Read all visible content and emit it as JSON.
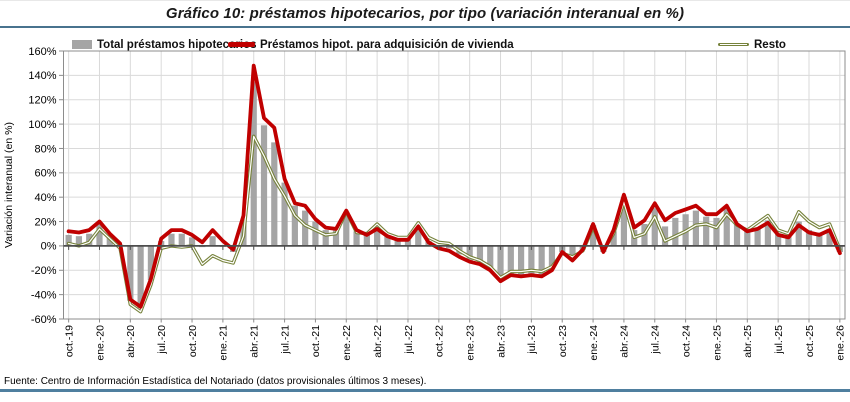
{
  "page": {
    "title": "Gráfico 10: préstamos hipotecarios, por tipo (variación interanual en %)",
    "footer": "Fuente: Centro de Información Estadística del Notariado (datos provisionales últimos 3 meses).",
    "accent_rule_color": "#48738E"
  },
  "chart_data": {
    "type": "combo",
    "title": "Gráfico 10: préstamos hipotecarios, por tipo (variación interanual en %)",
    "ylabel": "Variación interanual (en %)",
    "ylim": [
      -60,
      160
    ],
    "ytick_step": 20,
    "ytick_labels": [
      "160%",
      "140%",
      "120%",
      "100%",
      "80%",
      "60%",
      "40%",
      "20%",
      "0%",
      "-20%",
      "-40%",
      "-60%"
    ],
    "grid": true,
    "legend_position": "top",
    "xtick_every": 3,
    "categories": [
      "oct.-19",
      "nov.-19",
      "dic.-19",
      "ene.-20",
      "feb.-20",
      "mar.-20",
      "abr.-20",
      "may.-20",
      "jun.-20",
      "jul.-20",
      "ago.-20",
      "sep.-20",
      "oct.-20",
      "nov.-20",
      "dic.-20",
      "ene.-21",
      "feb.-21",
      "mar.-21",
      "abr.-21",
      "may.-21",
      "jun.-21",
      "jul.-21",
      "ago.-21",
      "sep.-21",
      "oct.-21",
      "nov.-21",
      "dic.-21",
      "ene.-22",
      "feb.-22",
      "mar.-22",
      "abr.-22",
      "may.-22",
      "jun.-22",
      "jul.-22",
      "ago.-22",
      "sep.-22",
      "oct.-22",
      "nov.-22",
      "dic.-22",
      "ene.-23",
      "feb.-23",
      "mar.-23",
      "abr.-23",
      "may.-23",
      "jun.-23",
      "jul.-23",
      "ago.-23",
      "sep.-23",
      "oct.-23",
      "nov.-23",
      "dic.-23",
      "ene.-24",
      "feb.-24",
      "mar.-24",
      "abr.-24",
      "may.-24",
      "jun.-24",
      "jul.-24",
      "ago.-24",
      "sep.-24",
      "oct.-24",
      "nov.-24",
      "dic.-24",
      "ene.-25",
      "feb.-25",
      "mar.-25",
      "abr.-25",
      "may.-25",
      "jun.-25",
      "jul.-25",
      "ago.-25",
      "sep.-25",
      "oct.-25",
      "nov.-25",
      "dic.-25",
      "ene.-26"
    ],
    "series": [
      {
        "name": "Total préstamos hipotecarios",
        "type": "bar",
        "color": "#A5A5A5",
        "values": [
          9,
          8,
          10,
          18,
          9,
          1,
          -45,
          -51,
          -28,
          4,
          10,
          10,
          7,
          -1,
          8,
          0,
          -5,
          21,
          135,
          99,
          85,
          52,
          33,
          29,
          20,
          13,
          13,
          28,
          12,
          9,
          15,
          9,
          6,
          5,
          17,
          4,
          -1,
          -2,
          -7,
          -12,
          -14,
          -19,
          -28,
          -23,
          -24,
          -23,
          -24,
          -19,
          -5,
          -11,
          -3,
          17,
          -5,
          12,
          40,
          13,
          18,
          31,
          16,
          23,
          26,
          29,
          24,
          23,
          31,
          18,
          12,
          15,
          21,
          10,
          8,
          20,
          13,
          11,
          14,
          -5
        ]
      },
      {
        "name": "Préstamos hipot. para adquisición de vivienda",
        "type": "line",
        "color": "#C00000",
        "values": [
          12,
          11,
          13,
          20,
          10,
          2,
          -44,
          -50,
          -27,
          6,
          13,
          13,
          9,
          3,
          13,
          4,
          -3,
          25,
          148,
          105,
          97,
          55,
          35,
          33,
          22,
          15,
          14,
          29,
          13,
          9,
          14,
          8,
          5,
          5,
          16,
          3,
          -2,
          -4,
          -9,
          -13,
          -15,
          -20,
          -29,
          -24,
          -25,
          -24,
          -25,
          -20,
          -5,
          -12,
          -3,
          18,
          -5,
          13,
          42,
          15,
          21,
          35,
          21,
          27,
          30,
          33,
          26,
          26,
          33,
          18,
          12,
          14,
          19,
          9,
          7,
          17,
          11,
          9,
          13,
          -6
        ]
      },
      {
        "name": "Resto",
        "type": "line",
        "color": "#76823B",
        "core_color": "#FFFFFF",
        "values": [
          2,
          0,
          3,
          14,
          6,
          -2,
          -48,
          -54,
          -32,
          -2,
          0,
          -1,
          0,
          -15,
          -8,
          -12,
          -14,
          8,
          90,
          74,
          55,
          41,
          25,
          17,
          13,
          9,
          10,
          28,
          11,
          10,
          18,
          10,
          7,
          7,
          19,
          7,
          3,
          2,
          -4,
          -9,
          -12,
          -17,
          -26,
          -21,
          -21,
          -20,
          -21,
          -17,
          -6,
          -9,
          -4,
          15,
          -4,
          10,
          36,
          7,
          10,
          24,
          4,
          8,
          12,
          17,
          18,
          15,
          26,
          17,
          13,
          19,
          25,
          13,
          10,
          28,
          20,
          15,
          18,
          -3
        ]
      }
    ]
  }
}
